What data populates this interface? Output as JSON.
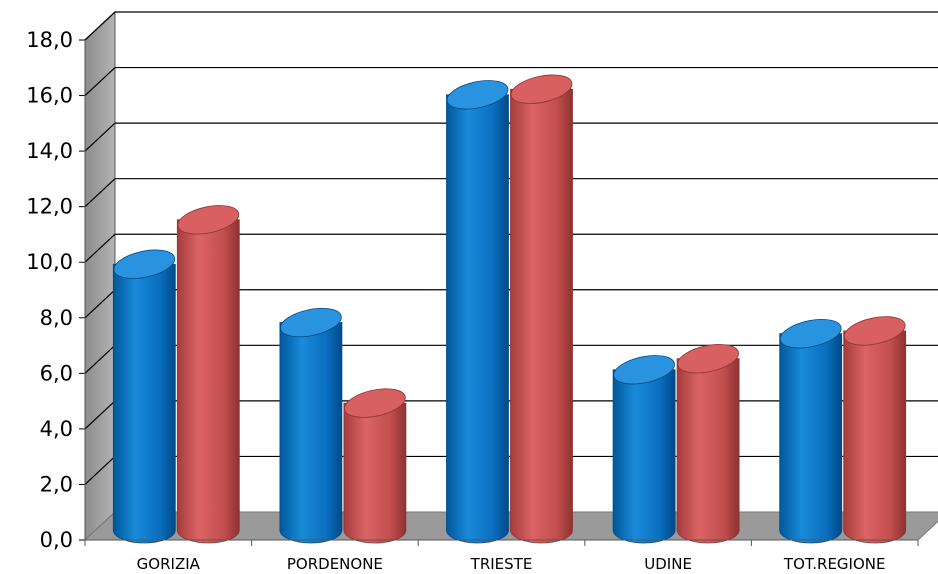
{
  "chart_data": {
    "type": "bar",
    "style": "3d-cylinder",
    "categories": [
      "GORIZIA",
      "PORDENONE",
      "TRIESTE",
      "UDINE",
      "TOT.REGIONE"
    ],
    "series": [
      {
        "color": "#0a73c4",
        "values": [
          10.0,
          7.9,
          16.1,
          6.2,
          7.5
        ]
      },
      {
        "color": "#c44d4d",
        "values": [
          11.6,
          5.0,
          16.3,
          6.6,
          7.6
        ]
      }
    ],
    "ylim": [
      0,
      18
    ],
    "y_ticks": [
      "0,0",
      "2,0",
      "4,0",
      "6,0",
      "8,0",
      "10,0",
      "12,0",
      "14,0",
      "16,0",
      "18,0"
    ],
    "grid": true,
    "legend": "none",
    "title": "",
    "xlabel": "",
    "ylabel": ""
  }
}
